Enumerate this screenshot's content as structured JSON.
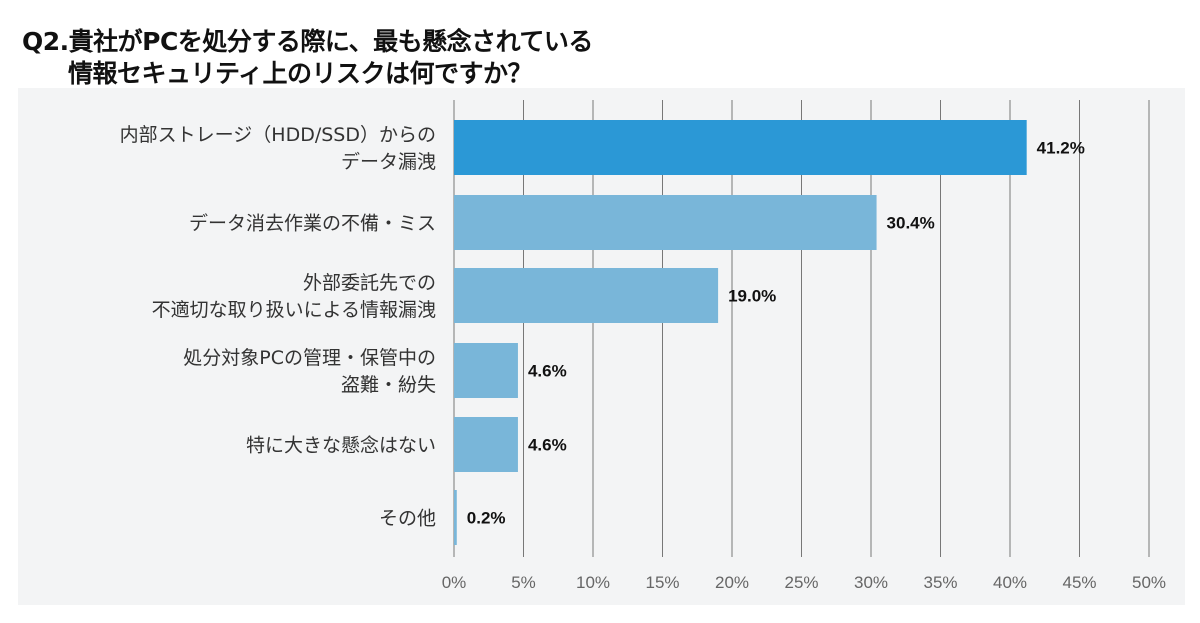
{
  "chart_data": {
    "type": "bar",
    "orientation": "horizontal",
    "title_lines": [
      "Q2.貴社がPCを処分する際に、最も懸念されている",
      "情報セキュリティ上のリスクは何ですか？"
    ],
    "categories": [
      [
        "内部ストレージ（HDD/SSD）からの",
        "データ漏洩"
      ],
      [
        "データ消去作業の不備・ミス"
      ],
      [
        "外部委託先での",
        "不適切な取り扱いによる情報漏洩"
      ],
      [
        "処分対象PCの管理・保管中の",
        "盗難・紛失"
      ],
      [
        "特に大きな懸念はない"
      ],
      [
        "その他"
      ]
    ],
    "values": [
      41.2,
      30.4,
      19.0,
      4.6,
      4.6,
      0.2
    ],
    "value_labels": [
      "41.2%",
      "30.4%",
      "19.0%",
      "4.6%",
      "4.6%",
      "0.2%"
    ],
    "xlim": [
      0,
      50
    ],
    "ticks": [
      "0%",
      "5%",
      "10%",
      "15%",
      "20%",
      "25%",
      "30%",
      "35%",
      "40%",
      "45%",
      "50%"
    ],
    "grid": true,
    "colors": {
      "highlight": "#2b98d6",
      "bar": "#79b6d9",
      "grid": "#777777",
      "panel": "#f3f4f5"
    }
  }
}
